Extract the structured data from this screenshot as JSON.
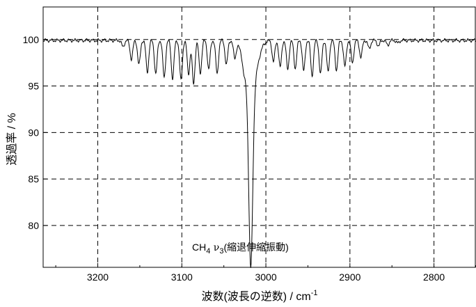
{
  "chart_data": {
    "type": "line",
    "title": "",
    "xlabel_main": "波数(波長の逆数) / cm",
    "xlabel_sup": "-1",
    "ylabel": "透過率 / %",
    "xlim": [
      3265,
      2750
    ],
    "ylim": [
      75.5,
      103.5
    ],
    "x_reversed": true,
    "x_ticks": [
      3200,
      3100,
      3000,
      2900,
      2800
    ],
    "y_ticks": [
      80,
      85,
      90,
      95,
      100
    ],
    "x_tick_labels": [
      "3200",
      "3100",
      "3000",
      "2900",
      "2800"
    ],
    "y_tick_labels": [
      "80",
      "85",
      "90",
      "95",
      "100"
    ],
    "grid": "dashed",
    "annotation": {
      "base": "CH",
      "sub1": "4",
      "greek": " ν",
      "sub2": "3",
      "rest": "(縮退伸縮振動)"
    },
    "series": [
      {
        "baseline": 99.9,
        "band_center": 3018,
        "band_depth": 19.0,
        "lines": [
          [
            3170,
            0.7
          ],
          [
            3160,
            2.0
          ],
          [
            3151,
            2.6
          ],
          [
            3141,
            3.4
          ],
          [
            3131,
            3.6
          ],
          [
            3121,
            4.0
          ],
          [
            3111,
            4.1
          ],
          [
            3101,
            4.3
          ],
          [
            3092,
            3.6
          ],
          [
            3086,
            4.7
          ],
          [
            3078,
            3.5
          ],
          [
            3068,
            3.1
          ],
          [
            3058,
            3.6
          ],
          [
            3047,
            2.6
          ],
          [
            3037,
            1.8
          ],
          [
            3026,
            0.9
          ],
          [
            2991,
            2.3
          ],
          [
            2983,
            2.9
          ],
          [
            2974,
            3.1
          ],
          [
            2965,
            3.0
          ],
          [
            2955,
            3.3
          ],
          [
            2945,
            3.8
          ],
          [
            2935,
            3.6
          ],
          [
            2926,
            3.4
          ],
          [
            2916,
            3.2
          ],
          [
            2906,
            2.8
          ],
          [
            2897,
            2.4
          ],
          [
            2887,
            1.8
          ],
          [
            2877,
            0.9
          ],
          [
            2866,
            0.6
          ],
          [
            2855,
            0.5
          ],
          [
            2843,
            0.3
          ]
        ]
      }
    ]
  }
}
